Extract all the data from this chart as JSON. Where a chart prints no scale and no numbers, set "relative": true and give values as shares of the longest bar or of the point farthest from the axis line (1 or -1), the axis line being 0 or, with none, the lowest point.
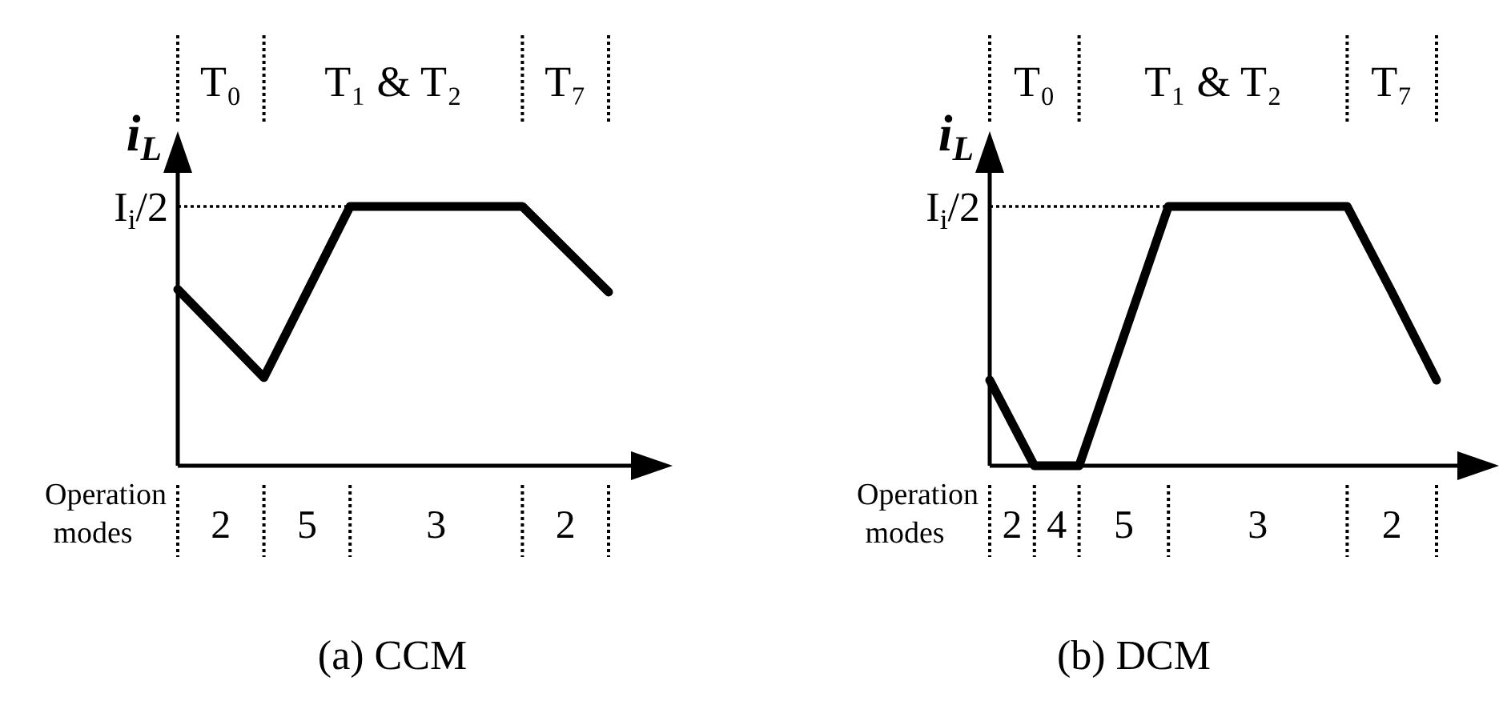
{
  "chart_data": [
    {
      "type": "line",
      "title": "(a) CCM",
      "xlabel": "Operation modes",
      "ylabel": "i$_{L}$",
      "relative": true,
      "categories": [
        null,
        null,
        null,
        null,
        null,
        null
      ],
      "series": [
        {
          "color": "#000000",
          "values": [
            0.68,
            0.34,
            1,
            1,
            1,
            0.67
          ]
        }
      ],
      "ref_lines": [
        {
          "axis": "y",
          "value": 1,
          "label": "I$_{i}$/2",
          "line_style": "dotted"
        }
      ],
      "annotations": [
        "T₀",
        "T₁ & T₂",
        "T₇",
        "2",
        "5",
        "3",
        "2"
      ]
    },
    {
      "type": "line",
      "title": "(b) DCM",
      "xlabel": "Operation modes",
      "ylabel": "i$_{L}$",
      "relative": true,
      "categories": [
        null,
        null,
        null,
        null,
        null,
        null,
        null,
        null,
        null,
        null,
        null
      ],
      "series": [
        {
          "color": "#000000",
          "values": [
            0.33,
            0,
            0,
            0.5,
            1,
            1,
            1,
            1,
            1,
            0.67,
            0.33
          ]
        }
      ],
      "ref_lines": [
        {
          "axis": "y",
          "value": 1,
          "label": "I$_{i}$/2",
          "line_style": "dotted"
        }
      ],
      "annotations": [
        "T₀",
        "T₁ & T₂",
        "T₇",
        "2",
        "4",
        "5",
        "3",
        "2"
      ]
    }
  ]
}
